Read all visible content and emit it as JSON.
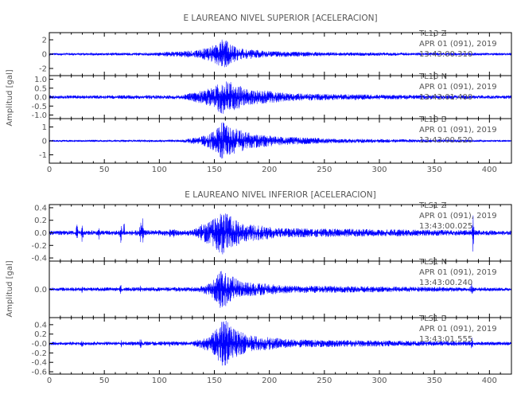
{
  "chart_data": [
    {
      "type": "line",
      "title": "E LAUREANO NIVEL SUPERIOR [ACELERACION]",
      "ylabel": "Amplitud [gal]",
      "xlabel": "",
      "xlim": [
        0,
        420
      ],
      "xticks": [
        0,
        50,
        100,
        150,
        200,
        250,
        300,
        350,
        400
      ],
      "line_color": "#0000ff",
      "grid": false,
      "panels": [
        {
          "station": "TL13",
          "component": "Z",
          "date": "APR 01 (091), 2019",
          "time": "13:43:00.310",
          "ylim": [
            -3.0,
            3.0
          ],
          "yticks": [
            -2,
            0,
            2
          ],
          "noise": 0.14,
          "envelope": [
            [
              0,
              0.15
            ],
            [
              90,
              0.18
            ],
            [
              134,
              0.5
            ],
            [
              145,
              0.95
            ],
            [
              155,
              1.7
            ],
            [
              158,
              2.3
            ],
            [
              163,
              1.6
            ],
            [
              172,
              0.8
            ],
            [
              200,
              0.4
            ],
            [
              250,
              0.25
            ],
            [
              300,
              0.2
            ],
            [
              420,
              0.15
            ]
          ]
        },
        {
          "station": "TL13",
          "component": "N",
          "date": "APR 01 (091), 2019",
          "time": "13:43:01.400",
          "ylim": [
            -1.2,
            1.2
          ],
          "yticks": [
            -1.0,
            -0.5,
            0.0,
            0.5,
            1.0
          ],
          "ytick_labels": [
            "-1.0",
            "-0.5",
            "0.0",
            "0.5",
            "1.0"
          ],
          "noise": 0.07,
          "envelope": [
            [
              0,
              0.08
            ],
            [
              120,
              0.1
            ],
            [
              135,
              0.3
            ],
            [
              150,
              0.6
            ],
            [
              157,
              1.0
            ],
            [
              162,
              0.9
            ],
            [
              180,
              0.45
            ],
            [
              220,
              0.2
            ],
            [
              300,
              0.12
            ],
            [
              420,
              0.08
            ]
          ]
        },
        {
          "station": "TL13",
          "component": "E",
          "date": "APR 01 (091), 2019",
          "time": "13:43:00.520",
          "ylim": [
            -1.6,
            1.6
          ],
          "yticks": [
            -1,
            0,
            1
          ],
          "noise": 0.05,
          "envelope": [
            [
              0,
              0.06
            ],
            [
              120,
              0.08
            ],
            [
              138,
              0.3
            ],
            [
              150,
              0.7
            ],
            [
              157,
              1.4
            ],
            [
              162,
              1.1
            ],
            [
              180,
              0.6
            ],
            [
              210,
              0.3
            ],
            [
              260,
              0.15
            ],
            [
              420,
              0.06
            ]
          ]
        }
      ]
    },
    {
      "type": "line",
      "title": "E LAUREANO NIVEL INFERIOR [ACELERACION]",
      "ylabel": "Amplitud [gal]",
      "xlabel": "",
      "xlim": [
        0,
        420
      ],
      "xticks": [
        0,
        50,
        100,
        150,
        200,
        250,
        300,
        350,
        400
      ],
      "line_color": "#0000ff",
      "grid": false,
      "panels": [
        {
          "station": "TLS1",
          "component": "Z",
          "date": "APR 01 (091), 2019",
          "time": "13:43:00.025",
          "ylim": [
            -0.45,
            0.45
          ],
          "yticks": [
            -0.4,
            -0.2,
            0.0,
            0.2,
            0.4
          ],
          "ytick_labels": [
            "-0.4",
            "-0.2",
            "0.0",
            "0.2",
            "0.4"
          ],
          "noise": 0.025,
          "envelope": [
            [
              0,
              0.03
            ],
            [
              130,
              0.04
            ],
            [
              137,
              0.12
            ],
            [
              148,
              0.2
            ],
            [
              157,
              0.35
            ],
            [
              163,
              0.28
            ],
            [
              175,
              0.15
            ],
            [
              210,
              0.07
            ],
            [
              420,
              0.03
            ]
          ],
          "spikes": [
            [
              25,
              0.12
            ],
            [
              30,
              0.15
            ],
            [
              45,
              0.08
            ],
            [
              65,
              0.18
            ],
            [
              68,
              0.16
            ],
            [
              83,
              0.25
            ],
            [
              85,
              0.2
            ],
            [
              110,
              0.06
            ],
            [
              113,
              0.05
            ],
            [
              385,
              0.36
            ]
          ]
        },
        {
          "station": "TLS1",
          "component": "N",
          "date": "APR 01 (091), 2019",
          "time": "13:43:00.240",
          "ylim": [
            -0.4,
            0.4
          ],
          "yticks": [
            0.0
          ],
          "ytick_labels": [
            "0.0"
          ],
          "noise": 0.02,
          "envelope": [
            [
              0,
              0.02
            ],
            [
              135,
              0.03
            ],
            [
              145,
              0.08
            ],
            [
              152,
              0.18
            ],
            [
              157,
              0.3
            ],
            [
              162,
              0.22
            ],
            [
              175,
              0.1
            ],
            [
              220,
              0.05
            ],
            [
              420,
              0.02
            ]
          ],
          "spikes": [
            [
              30,
              0.05
            ],
            [
              65,
              0.06
            ],
            [
              83,
              0.05
            ],
            [
              384,
              0.1
            ]
          ]
        },
        {
          "station": "TLS1",
          "component": "E",
          "date": "APR 01 (091), 2019",
          "time": "13:43:01.555",
          "ylim": [
            -0.65,
            0.55
          ],
          "yticks": [
            -0.6,
            -0.4,
            -0.2,
            0.0,
            0.2,
            0.4
          ],
          "ytick_labels": [
            "-0.6",
            "-0.4",
            "-0.2",
            "-0.0",
            "0.2",
            "0.4"
          ],
          "noise": 0.025,
          "envelope": [
            [
              0,
              0.03
            ],
            [
              130,
              0.04
            ],
            [
              140,
              0.12
            ],
            [
              150,
              0.25
            ],
            [
              156,
              0.45
            ],
            [
              160,
              0.55
            ],
            [
              165,
              0.35
            ],
            [
              180,
              0.18
            ],
            [
              220,
              0.08
            ],
            [
              420,
              0.03
            ]
          ],
          "spikes": [
            [
              30,
              0.06
            ],
            [
              65,
              0.08
            ],
            [
              83,
              0.09
            ],
            [
              110,
              0.04
            ],
            [
              384,
              0.12
            ]
          ]
        }
      ]
    }
  ]
}
